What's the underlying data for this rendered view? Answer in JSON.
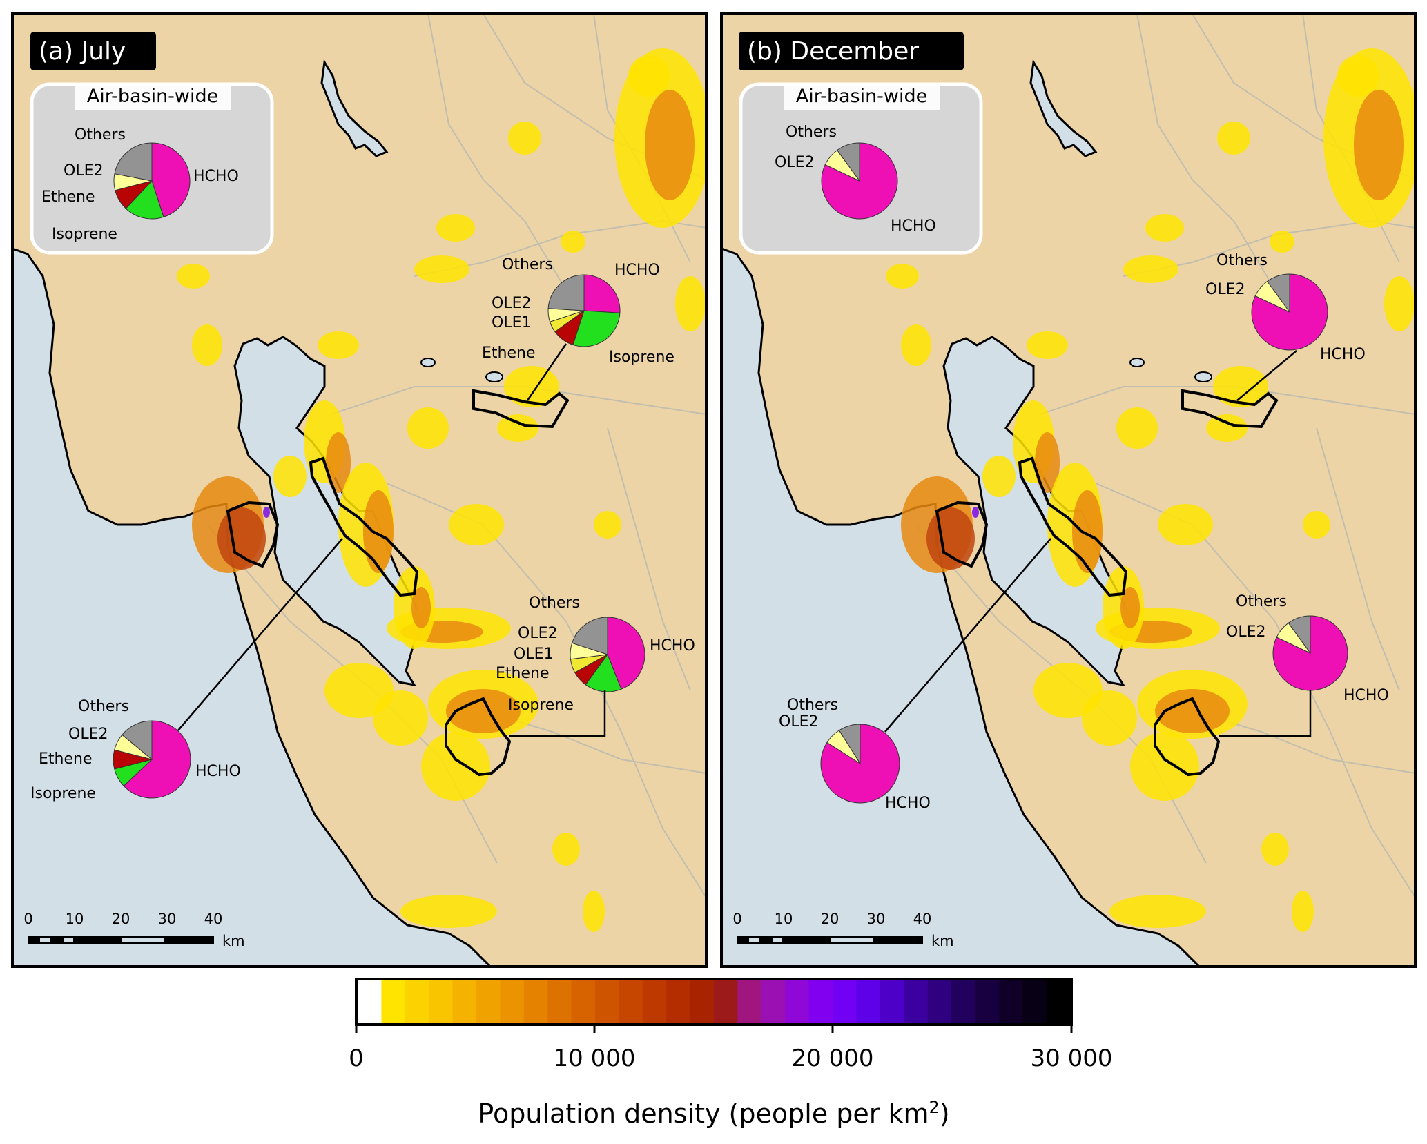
{
  "colors": {
    "land": "#ecd4a7",
    "water": "#d3dfe6",
    "road": "#b8b8b0",
    "inset_bg": "#d6d6d6",
    "hcho": "#ee10b5",
    "isoprene": "#23e01e",
    "ethene": "#b80404",
    "ole1": "#f0e832",
    "ole2": "#ffff99",
    "others": "#939393",
    "density_low": "#ffe400",
    "density_mid": "#e88a10",
    "density_high": "#c0450f",
    "density_peak": "#8a2be2"
  },
  "panels": [
    {
      "title": "(a) July",
      "inset_title": "Air-basin-wide",
      "pies": [
        {
          "name": "basin",
          "slices": [
            {
              "label": "HCHO",
              "value": 45
            },
            {
              "label": "Isoprene",
              "value": 17
            },
            {
              "label": "Ethene",
              "value": 9
            },
            {
              "label": "OLE2",
              "value": 7
            },
            {
              "label": "Others",
              "value": 22
            }
          ]
        },
        {
          "name": "east",
          "slices": [
            {
              "label": "HCHO",
              "value": 26
            },
            {
              "label": "Isoprene",
              "value": 29
            },
            {
              "label": "Ethene",
              "value": 10
            },
            {
              "label": "OLE1",
              "value": 5
            },
            {
              "label": "OLE2",
              "value": 6
            },
            {
              "label": "Others",
              "value": 24
            }
          ]
        },
        {
          "name": "south",
          "slices": [
            {
              "label": "HCHO",
              "value": 44
            },
            {
              "label": "Isoprene",
              "value": 16
            },
            {
              "label": "Ethene",
              "value": 7
            },
            {
              "label": "OLE1",
              "value": 6
            },
            {
              "label": "OLE2",
              "value": 7
            },
            {
              "label": "Others",
              "value": 20
            }
          ]
        },
        {
          "name": "west",
          "slices": [
            {
              "label": "HCHO",
              "value": 63
            },
            {
              "label": "Isoprene",
              "value": 8
            },
            {
              "label": "Ethene",
              "value": 8
            },
            {
              "label": "OLE2",
              "value": 7
            },
            {
              "label": "Others",
              "value": 14
            }
          ]
        }
      ],
      "scale": {
        "ticks": [
          "0",
          "10",
          "20",
          "30",
          "40"
        ],
        "unit": "km"
      }
    },
    {
      "title": "(b) December",
      "inset_title": "Air-basin-wide",
      "pies": [
        {
          "name": "basin",
          "slices": [
            {
              "label": "HCHO",
              "value": 82
            },
            {
              "label": "OLE2",
              "value": 8
            },
            {
              "label": "Others",
              "value": 10
            }
          ]
        },
        {
          "name": "east",
          "slices": [
            {
              "label": "HCHO",
              "value": 82
            },
            {
              "label": "OLE2",
              "value": 8
            },
            {
              "label": "Others",
              "value": 10
            }
          ]
        },
        {
          "name": "south",
          "slices": [
            {
              "label": "HCHO",
              "value": 82
            },
            {
              "label": "OLE2",
              "value": 8
            },
            {
              "label": "Others",
              "value": 10
            }
          ]
        },
        {
          "name": "west",
          "slices": [
            {
              "label": "HCHO",
              "value": 84
            },
            {
              "label": "OLE2",
              "value": 7
            },
            {
              "label": "Others",
              "value": 9
            }
          ]
        }
      ],
      "scale": {
        "ticks": [
          "0",
          "10",
          "20",
          "30",
          "40"
        ],
        "unit": "km"
      }
    }
  ],
  "colorbar": {
    "ticks": [
      "0",
      "10 000",
      "20 000",
      "30 000"
    ],
    "label_main": "Population density (people per km",
    "label_sup": "2",
    "label_end": ")"
  }
}
